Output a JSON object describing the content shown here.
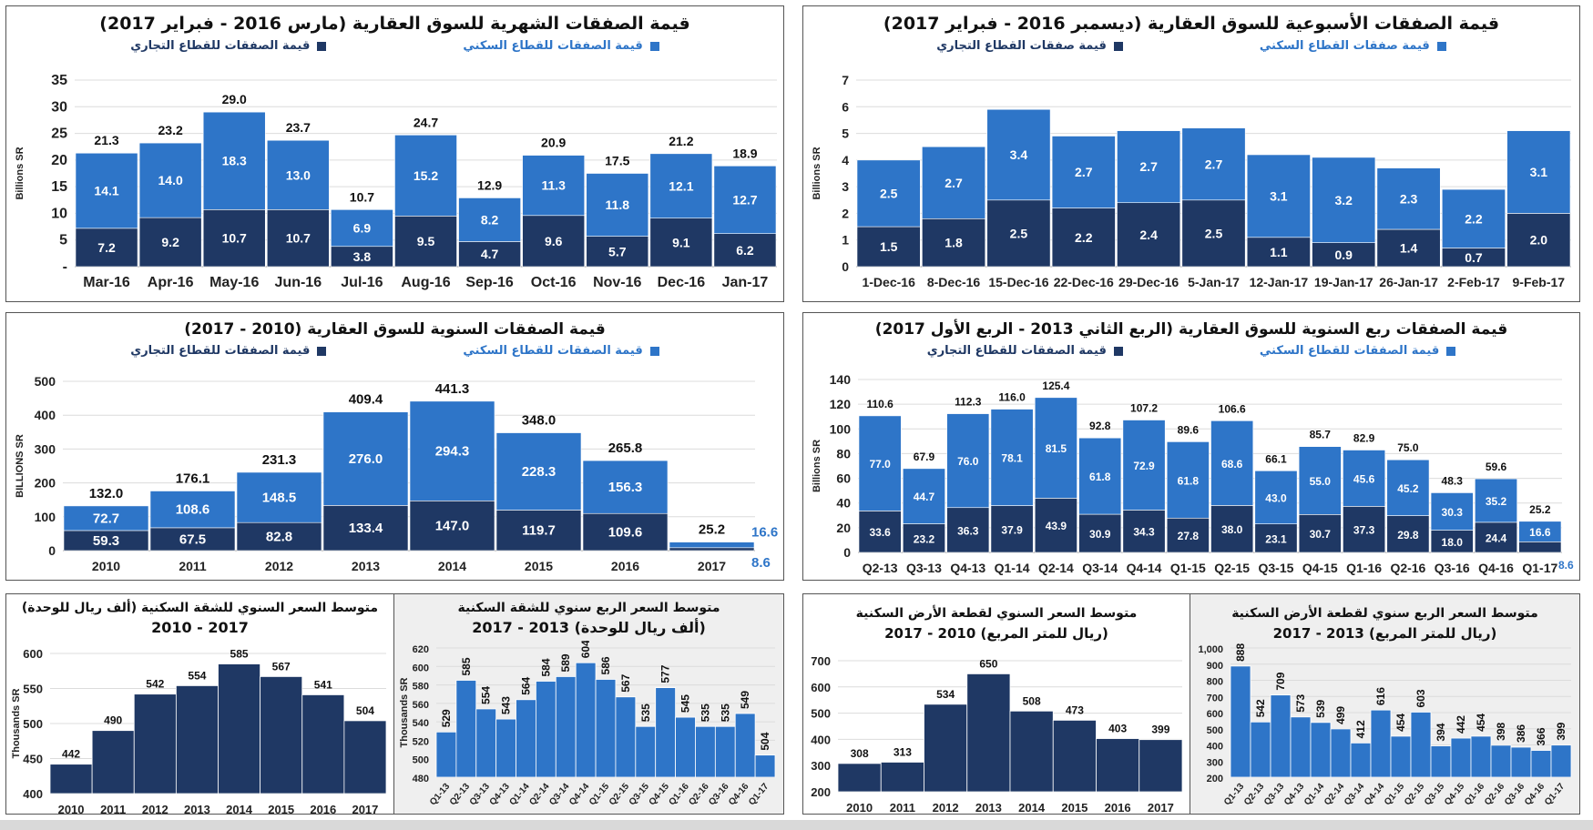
{
  "colors": {
    "commercial": "#1f3864",
    "residential": "#2e75c8",
    "grid": "#dcdcdc"
  },
  "chart_data": [
    {
      "id": "monthly",
      "type": "bar",
      "stacked": true,
      "title": "قيمة الصفقات الشهرية للسوق العقارية (مارس 2016 - فبراير 2017)",
      "legend": [
        "قيمة الصفقات للقطاع السكني",
        "قيمة الصفقات للقطاع التجاري"
      ],
      "ylabel": "Billions SR",
      "ylim": [
        0,
        35
      ],
      "yticks": [
        "-",
        "5",
        "10",
        "15",
        "20",
        "25",
        "30",
        "35"
      ],
      "categories": [
        "Mar-16",
        "Apr-16",
        "May-16",
        "Jun-16",
        "Jul-16",
        "Aug-16",
        "Sep-16",
        "Oct-16",
        "Nov-16",
        "Dec-16",
        "Jan-17"
      ],
      "series": [
        {
          "name": "قيمة الصفقات للقطاع التجاري",
          "values": [
            7.2,
            9.2,
            10.7,
            10.7,
            3.8,
            9.5,
            4.7,
            9.6,
            5.7,
            9.1,
            6.2
          ]
        },
        {
          "name": "قيمة الصفقات للقطاع السكني",
          "values": [
            14.1,
            14.0,
            18.3,
            13.0,
            6.9,
            15.2,
            8.2,
            11.3,
            11.8,
            12.1,
            12.7
          ]
        }
      ],
      "totals": [
        21.3,
        23.2,
        29.0,
        23.7,
        10.7,
        24.7,
        12.9,
        20.9,
        17.5,
        21.2,
        18.9
      ]
    },
    {
      "id": "weekly",
      "type": "bar",
      "stacked": true,
      "title": "قيمة الصفقات الأسبوعية للسوق العقارية (ديسمبر 2016 - فبراير 2017)",
      "legend": [
        "قيمة صفقات القطاع السكني",
        "قيمة صفقات القطاع التجاري"
      ],
      "ylabel": "Billions SR",
      "ylim": [
        0,
        7
      ],
      "yticks": [
        "0",
        "1",
        "2",
        "3",
        "4",
        "5",
        "6",
        "7"
      ],
      "categories": [
        "1-Dec-16",
        "8-Dec-16",
        "15-Dec-16",
        "22-Dec-16",
        "29-Dec-16",
        "5-Jan-17",
        "12-Jan-17",
        "19-Jan-17",
        "26-Jan-17",
        "2-Feb-17",
        "9-Feb-17"
      ],
      "series": [
        {
          "name": "قيمة صفقات القطاع التجاري",
          "values": [
            1.5,
            1.8,
            2.5,
            2.2,
            2.4,
            2.5,
            1.1,
            0.9,
            1.4,
            0.7,
            2.0
          ]
        },
        {
          "name": "قيمة صفقات القطاع السكني",
          "values": [
            2.5,
            2.7,
            3.4,
            2.7,
            2.7,
            2.7,
            3.1,
            3.2,
            2.3,
            2.2,
            3.1
          ]
        }
      ],
      "totals": null
    },
    {
      "id": "yearly",
      "type": "bar",
      "stacked": true,
      "title": "قيمة الصفقات السنوية للسوق العقارية (2010 - 2017)",
      "legend": [
        "قيمة الصفقات للقطاع السكني",
        "قيمة الصفقات للقطاع التجاري"
      ],
      "ylabel": "BILLIONS SR",
      "ylim": [
        0,
        500
      ],
      "yticks": [
        "0",
        "100",
        "200",
        "300",
        "400",
        "500"
      ],
      "categories": [
        "2010",
        "2011",
        "2012",
        "2013",
        "2014",
        "2015",
        "2016",
        "2017"
      ],
      "series": [
        {
          "name": "قيمة الصفقات للقطاع التجاري",
          "values": [
            59.3,
            67.5,
            82.8,
            133.4,
            147.0,
            119.7,
            109.6,
            8.6
          ]
        },
        {
          "name": "قيمة الصفقات للقطاع السكني",
          "values": [
            72.7,
            108.6,
            148.5,
            276.0,
            294.3,
            228.3,
            156.3,
            16.6
          ]
        }
      ],
      "totals": [
        132.0,
        176.1,
        231.3,
        409.4,
        441.3,
        348.0,
        265.8,
        25.2
      ]
    },
    {
      "id": "quarterly",
      "type": "bar",
      "stacked": true,
      "title": "قيمة الصفقات ربع السنوية للسوق العقارية (الربع الثاني 2013 - الربع الأول 2017)",
      "legend": [
        "قيمة الصفقات للقطاع السكني",
        "قيمة الصفقات للقطاع التجاري"
      ],
      "ylabel": "Billions SR",
      "ylim": [
        0,
        140
      ],
      "yticks": [
        "0",
        "20",
        "40",
        "60",
        "80",
        "100",
        "120",
        "140"
      ],
      "categories": [
        "Q2-13",
        "Q3-13",
        "Q4-13",
        "Q1-14",
        "Q2-14",
        "Q3-14",
        "Q4-14",
        "Q1-15",
        "Q2-15",
        "Q3-15",
        "Q4-15",
        "Q1-16",
        "Q2-16",
        "Q3-16",
        "Q4-16",
        "Q1-17"
      ],
      "series": [
        {
          "name": "قيمة الصفقات للقطاع التجاري",
          "values": [
            33.6,
            23.2,
            36.3,
            37.9,
            43.9,
            30.9,
            34.3,
            27.8,
            38.0,
            23.1,
            30.7,
            37.3,
            29.8,
            18.0,
            24.4,
            8.6
          ]
        },
        {
          "name": "قيمة الصفقات للقطاع السكني",
          "values": [
            77.0,
            44.7,
            76.0,
            78.1,
            81.5,
            61.8,
            72.9,
            61.8,
            68.6,
            43.0,
            55.0,
            45.6,
            45.2,
            30.3,
            35.2,
            16.6
          ]
        }
      ],
      "totals": [
        110.6,
        67.9,
        112.3,
        116.0,
        125.4,
        92.8,
        107.2,
        89.6,
        106.6,
        66.1,
        85.7,
        82.9,
        75.0,
        48.3,
        59.6,
        25.2
      ]
    },
    {
      "id": "apt-annual",
      "type": "bar",
      "title": [
        "متوسط السعر السنوي للشقة السكنية  (ألف ريال للوحدة)",
        "2017 - 2010"
      ],
      "ylabel": "Thousands SR",
      "ylim": [
        400,
        600
      ],
      "yticks": [
        "400",
        "450",
        "500",
        "550",
        "600"
      ],
      "categories": [
        "2010",
        "2011",
        "2012",
        "2013",
        "2014",
        "2015",
        "2016",
        "2017"
      ],
      "values": [
        442,
        490,
        542,
        554,
        585,
        567,
        541,
        504
      ]
    },
    {
      "id": "apt-quarterly",
      "type": "bar",
      "title": [
        "متوسط السعر الربع سنوي للشقة السكنية",
        "(ألف ريال للوحدة) 2013 - 2017"
      ],
      "ylabel": "Thousands SR",
      "ylim": [
        480,
        620
      ],
      "yticks": [
        "480",
        "500",
        "520",
        "540",
        "560",
        "580",
        "600",
        "620"
      ],
      "categories": [
        "Q1-13",
        "Q2-13",
        "Q3-13",
        "Q4-13",
        "Q1-14",
        "Q2-14",
        "Q3-14",
        "Q4-14",
        "Q1-15",
        "Q2-15",
        "Q3-15",
        "Q4-15",
        "Q1-16",
        "Q2-16",
        "Q3-16",
        "Q4-16",
        "Q1-17"
      ],
      "values": [
        529,
        585,
        554,
        543,
        564,
        584,
        589,
        604,
        586,
        567,
        535,
        577,
        545,
        535,
        535,
        549,
        504
      ]
    },
    {
      "id": "land-annual",
      "type": "bar",
      "title": [
        "متوسط السعر السنوي لقطعة الأرض السكنية",
        "(ريال للمتر المربع) 2010 - 2017"
      ],
      "ylabel": "",
      "ylim": [
        200,
        700
      ],
      "yticks": [
        "200",
        "300",
        "400",
        "500",
        "600",
        "700"
      ],
      "categories": [
        "2010",
        "2011",
        "2012",
        "2013",
        "2014",
        "2015",
        "2016",
        "2017"
      ],
      "values": [
        308,
        313,
        534,
        650,
        508,
        473,
        403,
        399
      ]
    },
    {
      "id": "land-quarterly",
      "type": "bar",
      "title": [
        "متوسط السعر الربع سنوي لقطعة الأرض السكنية",
        "(ريال للمتر المربع) 2013 - 2017"
      ],
      "ylabel": "",
      "ylim": [
        200,
        1000
      ],
      "yticks": [
        "200",
        "300",
        "400",
        "500",
        "600",
        "700",
        "800",
        "900",
        "1,000"
      ],
      "categories": [
        "Q1-13",
        "Q2-13",
        "Q3-13",
        "Q4-13",
        "Q1-14",
        "Q2-14",
        "Q3-14",
        "Q4-14",
        "Q1-15",
        "Q2-15",
        "Q3-15",
        "Q4-15",
        "Q1-16",
        "Q2-16",
        "Q3-16",
        "Q4-16",
        "Q1-17"
      ],
      "values": [
        888,
        542,
        709,
        573,
        539,
        499,
        412,
        616,
        454,
        603,
        394,
        442,
        454,
        398,
        386,
        366,
        399
      ]
    }
  ]
}
